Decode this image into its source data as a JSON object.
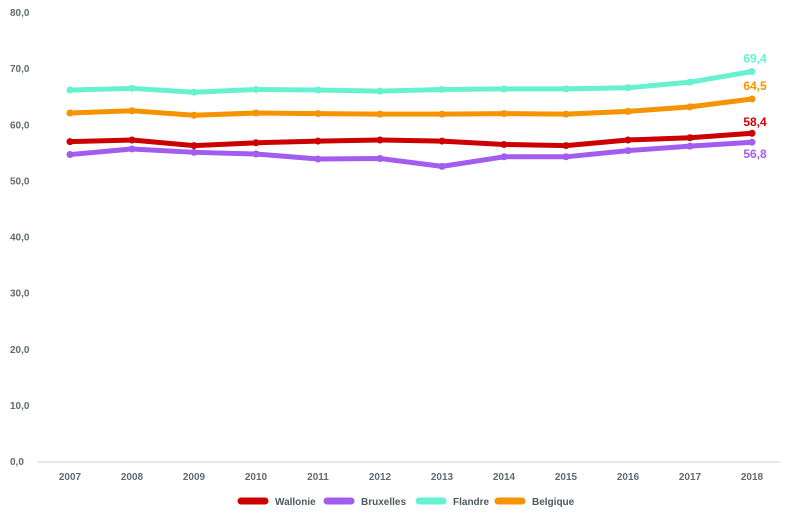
{
  "chart_data": {
    "type": "line",
    "title": "",
    "xlabel": "",
    "ylabel": "",
    "x": [
      "2007",
      "2008",
      "2009",
      "2010",
      "2011",
      "2012",
      "2013",
      "2014",
      "2015",
      "2016",
      "2017",
      "2018"
    ],
    "ylim": [
      0,
      80
    ],
    "yticks": [
      "0,0",
      "10,0",
      "20,0",
      "30,0",
      "40,0",
      "50,0",
      "60,0",
      "70,0",
      "80,0"
    ],
    "grid": false,
    "legend_position": "bottom",
    "series": [
      {
        "name": "Wallonie",
        "color": "#cc0000",
        "values": [
          56.9,
          57.2,
          56.2,
          56.7,
          57.0,
          57.2,
          57.0,
          56.4,
          56.2,
          57.2,
          57.6,
          58.4
        ],
        "end_label": "58,4"
      },
      {
        "name": "Bruxelles",
        "color": "#a35cf0",
        "values": [
          54.6,
          55.6,
          55.0,
          54.7,
          53.8,
          53.9,
          52.5,
          54.2,
          54.2,
          55.3,
          56.1,
          56.8
        ],
        "end_label": "56,8"
      },
      {
        "name": "Flandre",
        "color": "#66f2d0",
        "values": [
          66.1,
          66.4,
          65.7,
          66.2,
          66.1,
          65.9,
          66.2,
          66.3,
          66.3,
          66.5,
          67.5,
          69.4
        ],
        "end_label": "69,4"
      },
      {
        "name": "Belgique",
        "color": "#f59300",
        "values": [
          62.0,
          62.4,
          61.6,
          62.0,
          61.9,
          61.8,
          61.8,
          61.9,
          61.8,
          62.3,
          63.1,
          64.5
        ],
        "end_label": "64,5"
      }
    ]
  }
}
